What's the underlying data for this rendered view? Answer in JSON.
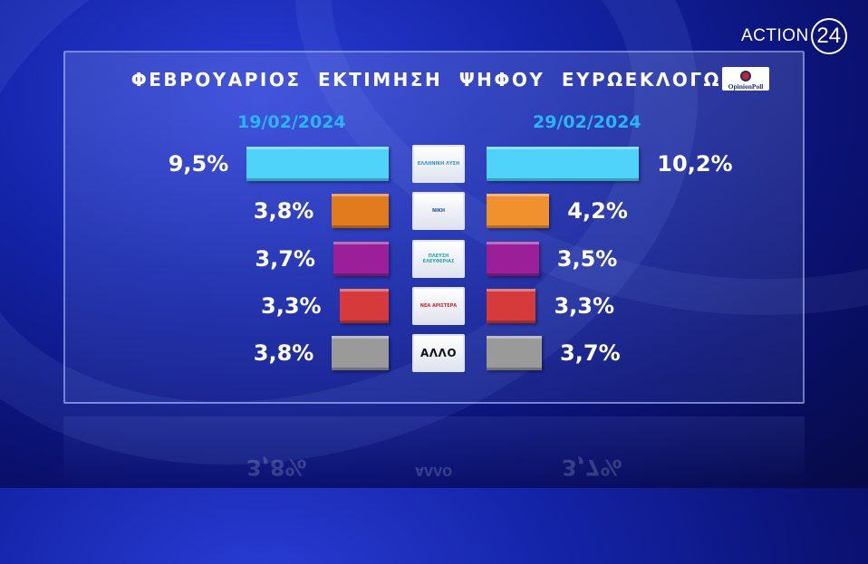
{
  "brand": {
    "channel_name": "ACTION",
    "channel_number": "24"
  },
  "pollster": {
    "name": "OpinionPoll"
  },
  "chart_data": {
    "type": "bar",
    "title": "ΦΕΒΡΟΥΑΡΙΟΣ ΕΚΤΙΜΗΣΗ ΨΗΦΟΥ ΕΥΡΩΕΚΛΟΓΩΝ",
    "categories": [
      "ΕΛΛΗΝΙΚΗ ΛΥΣΗ",
      "ΝΙΚΗ",
      "ΠΛΕΥΣΗ ΕΛΕΥΘΕΡΙΑΣ",
      "ΝΕΑ ΑΡΙΣΤΕΡΑ",
      "ΑΛΛΟ"
    ],
    "series": [
      {
        "name": "19/02/2024",
        "values": [
          9.5,
          3.8,
          3.7,
          3.3,
          3.8
        ],
        "labels": [
          "9,5%",
          "3,8%",
          "3,7%",
          "3,3%",
          "3,8%"
        ]
      },
      {
        "name": "29/02/2024",
        "values": [
          10.2,
          4.2,
          3.5,
          3.3,
          3.7
        ],
        "labels": [
          "10,2%",
          "4,2%",
          "3,5%",
          "3,3%",
          "3,7%"
        ]
      }
    ],
    "colors": [
      "#4fd3fb",
      "#e27a1e",
      "#9b1f99",
      "#d63a3a",
      "#9a9a9a"
    ],
    "left_colors": [
      "#4fd3fb",
      "#e27a1e",
      "#9b1f99",
      "#d63a3a",
      "#9a9a9a"
    ],
    "right_colors": [
      "#4fd3fb",
      "#f0912e",
      "#9b1f99",
      "#d63a3a",
      "#9a9a9a"
    ],
    "logo_texts": [
      "ΕΛΛΗΝΙΚΗ ΛΥΣΗ",
      "ΝΙΚΗ",
      "ΠΛΕΥΣΗ ΕΛΕΥΘΕΡΙΑΣ",
      "ΝΕΑ ΑΡΙΣΤΕΡΑ",
      "ΑΛΛΟ"
    ],
    "reflection_labels": [
      "3,8%",
      "ΑΛΛΟ",
      "3,7%"
    ],
    "legend": "none",
    "grid": false
  }
}
